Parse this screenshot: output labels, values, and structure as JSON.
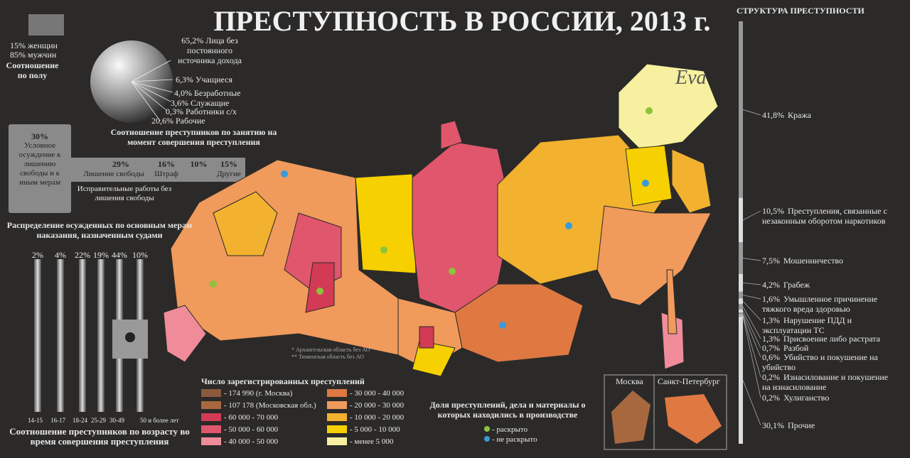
{
  "title": "ПРЕСТУПНОСТЬ В РОССИИ, 2013 г.",
  "watermark": "Eva",
  "gender": {
    "women": "15% женщин",
    "men": "85% мужчин",
    "caption": "Соотношение по полу"
  },
  "occupation": {
    "items": [
      "65,2% Лица без постоянного источника дохода",
      "6,3% Учащиеся",
      "4,0% Безработные",
      "3,6% Служащие",
      "0,3% Работники с/х",
      "20,6% Рабочие"
    ],
    "caption": "Соотношение преступников по занятию на момент совершения преступления"
  },
  "punishment": {
    "items": [
      {
        "percent": "30%",
        "label": "Условное осуждение к лишению свободы и к иным мерам"
      },
      {
        "percent": "29%",
        "label": "Лишение свободы"
      },
      {
        "percent": "16%",
        "label": "Штраф"
      },
      {
        "percent": "10%",
        "label": "Исправительные работы без лишения свободы"
      },
      {
        "percent": "15%",
        "label": "Другие"
      }
    ],
    "caption": "Распределение осужденных по основным мерам наказания, назначенным судами"
  },
  "age": {
    "groups": [
      {
        "percent": "2%",
        "label": "14-15"
      },
      {
        "percent": "4%",
        "label": "16-17"
      },
      {
        "percent": "22%",
        "label": "18-24"
      },
      {
        "percent": "19%",
        "label": "25-29"
      },
      {
        "percent": "44%",
        "label": "30-49"
      },
      {
        "percent": "10%",
        "label": "50 и более лет"
      }
    ],
    "caption": "Соотношение преступников по возрасту во время совершения преступления"
  },
  "map": {
    "legend_title": "Число зарегистрированных преступлений",
    "legend": [
      {
        "label": "- 174 990 (г. Москва)",
        "color": "#8a5a3e"
      },
      {
        "label": "- 107 178 (Московская обл.)",
        "color": "#a8683f"
      },
      {
        "label": "- 60 000 - 70 000",
        "color": "#d23a55"
      },
      {
        "label": "- 50 000 - 60 000",
        "color": "#e0566c"
      },
      {
        "label": "- 40 000 - 50 000",
        "color": "#f08c9a"
      },
      {
        "label": "- 30 000 - 40 000",
        "color": "#e07842"
      },
      {
        "label": "- 20 000 - 30 000",
        "color": "#f09a5c"
      },
      {
        "label": "- 10 000 - 20 000",
        "color": "#f2b12e"
      },
      {
        "label": "- 5 000 - 10 000",
        "color": "#f6d000"
      },
      {
        "label": "- менее 5 000",
        "color": "#f7f0a0"
      }
    ],
    "notes": [
      "* Архангельская область без АО",
      "** Тюменская область без АО"
    ],
    "insets": [
      "Москва",
      "Санкт-Петербург"
    ]
  },
  "solved": {
    "title": "Доля преступлений, дела и материалы о которых находились в производстве",
    "solved": "- раскрыто",
    "unsolved": "- не раскрыто"
  },
  "structure": {
    "title": "СТРУКТУРА ПРЕСТУПНОСТИ",
    "items": [
      {
        "value": 41.8,
        "label": "41,8%",
        "name": "Кража"
      },
      {
        "value": 10.5,
        "label": "10,5%",
        "name": "Преступления, связанные с незаконным оборотом наркотиков"
      },
      {
        "value": 7.5,
        "label": "7,5%",
        "name": "Мошенничество"
      },
      {
        "value": 4.2,
        "label": "4,2%",
        "name": "Грабеж"
      },
      {
        "value": 1.6,
        "label": "1,6%",
        "name": "Умышленное причинение тяжкого вреда здоровью"
      },
      {
        "value": 1.3,
        "label": "1,3%",
        "name": "Нарушение ПДД и эксплуатации ТС"
      },
      {
        "value": 1.3,
        "label": "1,3%",
        "name": "Присвоение либо растрата"
      },
      {
        "value": 0.7,
        "label": "0,7%",
        "name": "Разбой"
      },
      {
        "value": 0.6,
        "label": "0,6%",
        "name": "Убийство и покушение на убийство"
      },
      {
        "value": 0.2,
        "label": "0,2%",
        "name": "Изнасилование и покушение на изнасилование"
      },
      {
        "value": 0.2,
        "label": "0,2%",
        "name": "Хулиганство"
      },
      {
        "value": 30.1,
        "label": "30,1%",
        "name": "Прочие"
      }
    ]
  }
}
